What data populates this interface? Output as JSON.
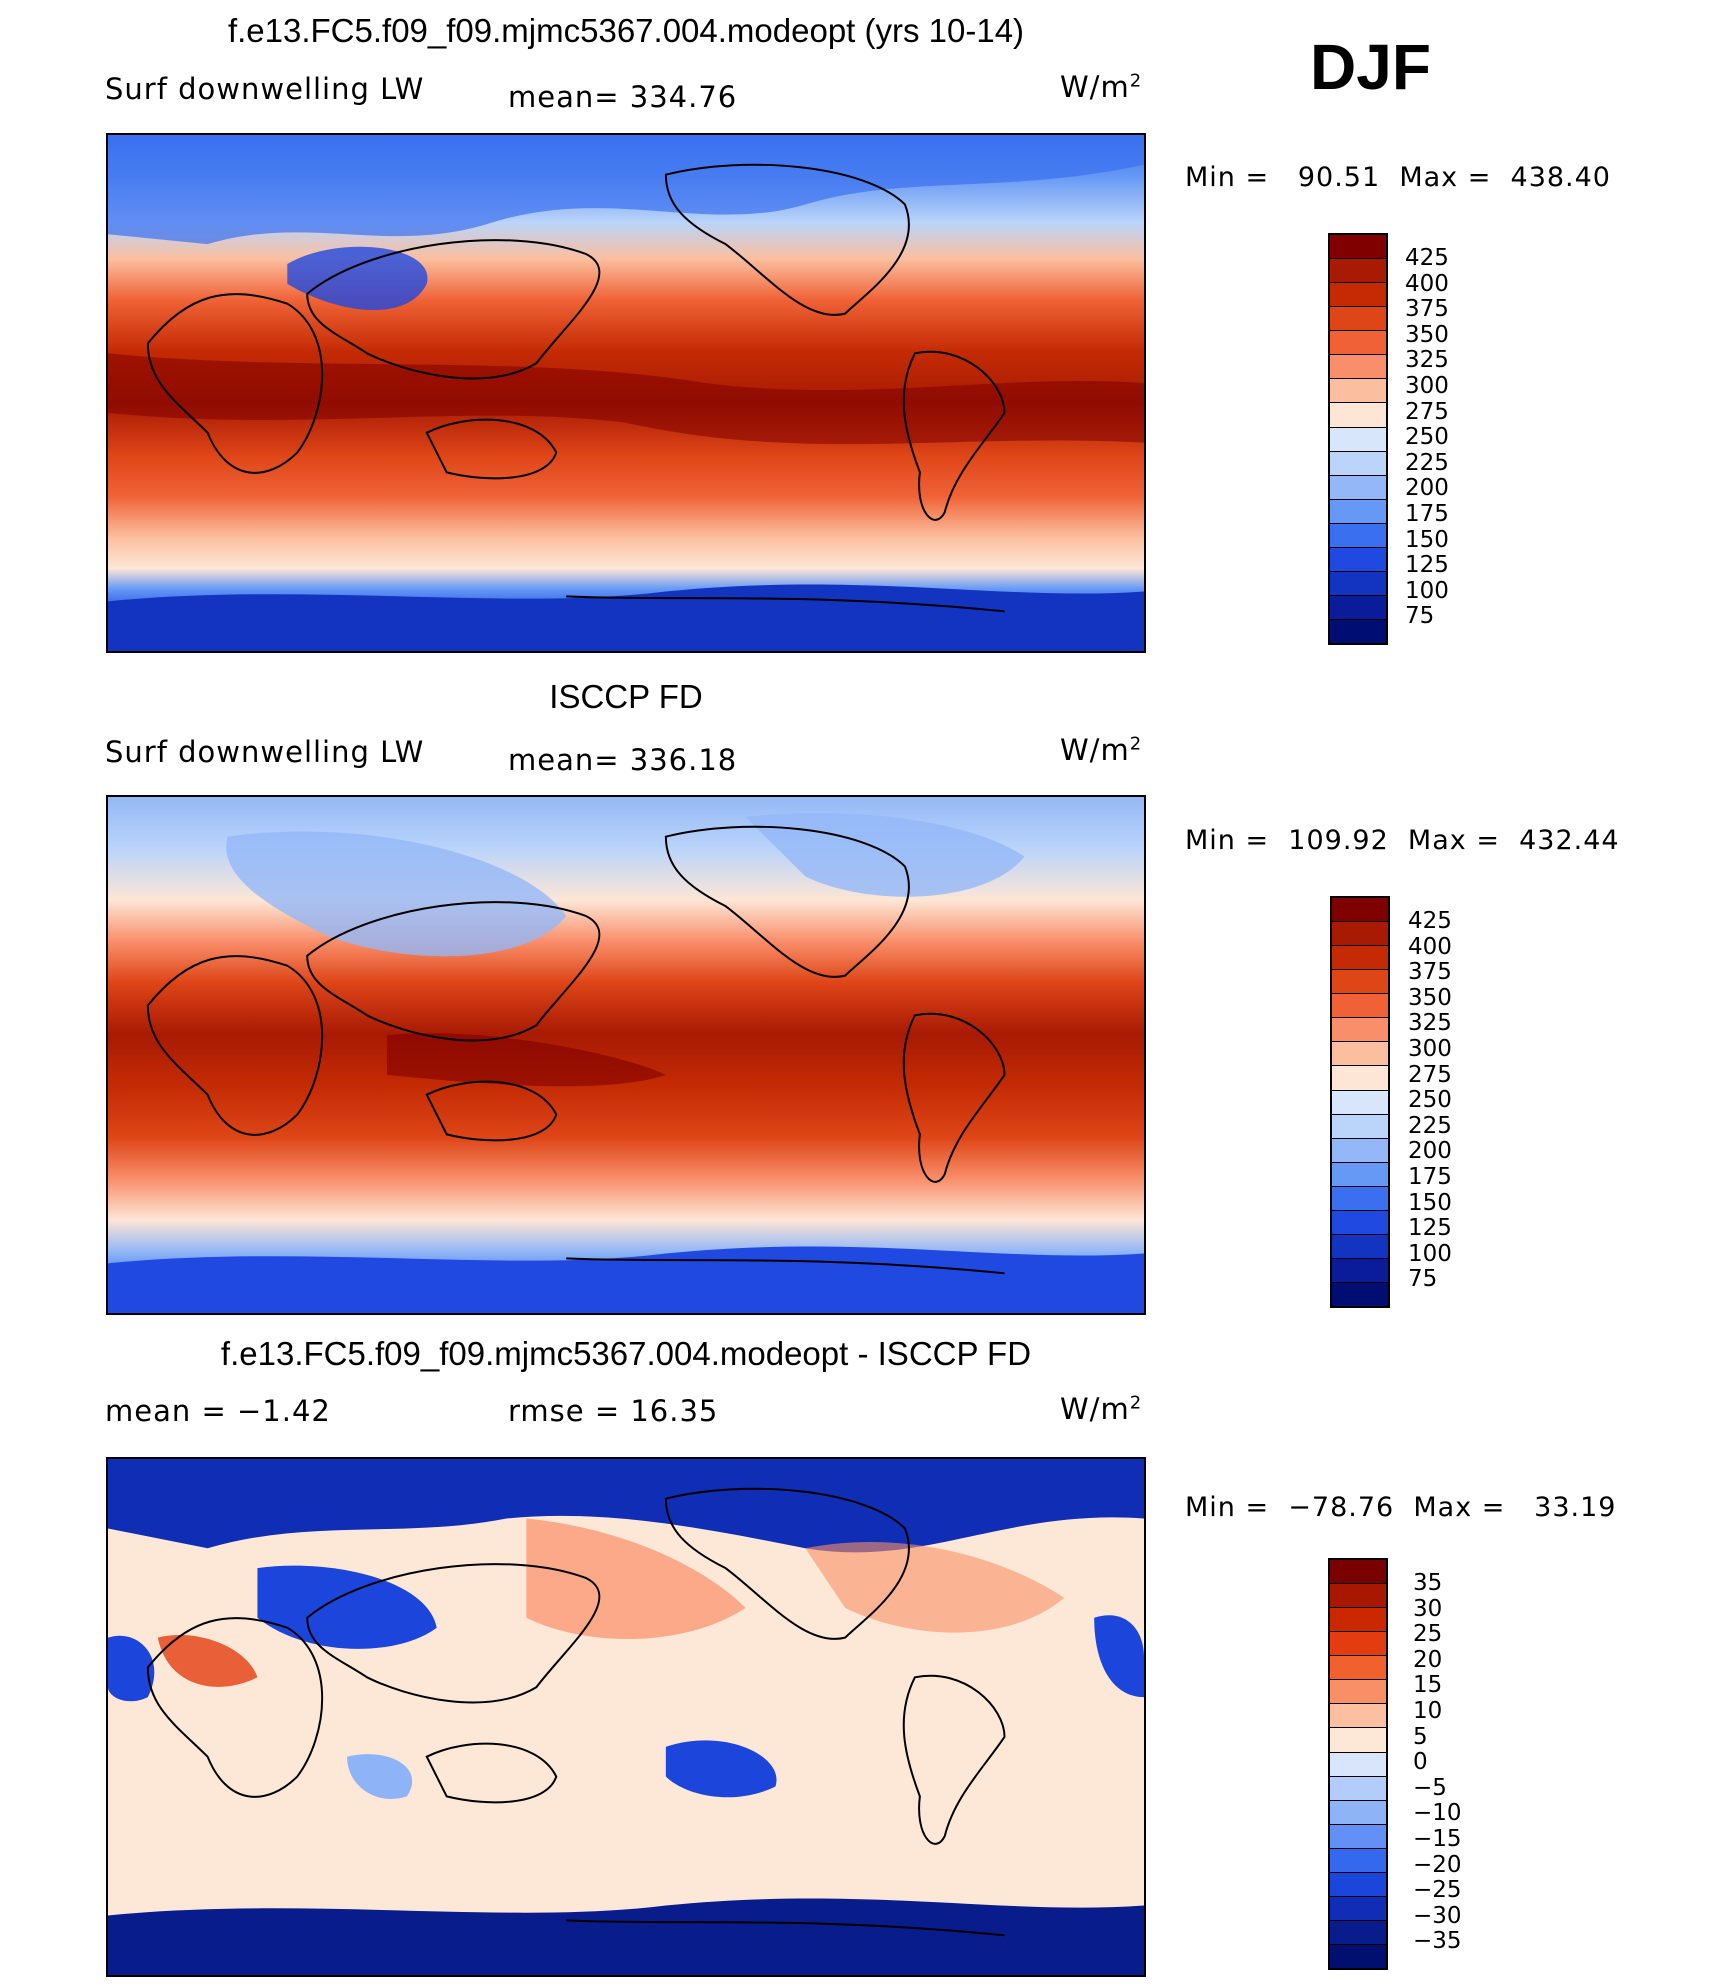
{
  "season": "DJF",
  "colors": {
    "model_obs_scale": [
      "#800000",
      "#a81a04",
      "#c42b04",
      "#de4517",
      "#f06236",
      "#f98e6a",
      "#fbbf9f",
      "#fde6d6",
      "#d8e6fb",
      "#bad4fa",
      "#94b8f7",
      "#6698f5",
      "#3a70f0",
      "#1f49e0",
      "#1234c0",
      "#0a1c99",
      "#000e73"
    ],
    "diff_scale": [
      "#7a0000",
      "#a81800",
      "#cc2800",
      "#e33c10",
      "#f0612e",
      "#f98f66",
      "#fcc0a0",
      "#fde8d8",
      "#d8e5fb",
      "#b2cdfa",
      "#8fb3f7",
      "#6290f4",
      "#3468ee",
      "#1c45dc",
      "#0f2eb5",
      "#081c8c",
      "#000f70"
    ]
  },
  "panels": [
    {
      "title": "f.e13.FC5.f09_f09.mjmc5367.004.modeopt (yrs 10-14)",
      "left_label": "Surf downwelling LW",
      "center_label": "mean=  334.76",
      "unit": "W/m",
      "unit_sup": "2",
      "minmax": "Min =   90.51  Max =  438.40",
      "colorbar_ticks": [
        "425",
        "400",
        "375",
        "350",
        "325",
        "300",
        "275",
        "250",
        "225",
        "200",
        "175",
        "150",
        "125",
        "100",
        "75"
      ]
    },
    {
      "title": "ISCCP FD",
      "left_label": "Surf downwelling LW",
      "center_label": "mean=  336.18",
      "unit": "W/m",
      "unit_sup": "2",
      "minmax": "Min =  109.92  Max =  432.44",
      "colorbar_ticks": [
        "425",
        "400",
        "375",
        "350",
        "325",
        "300",
        "275",
        "250",
        "225",
        "200",
        "175",
        "150",
        "125",
        "100",
        "75"
      ]
    },
    {
      "title": "f.e13.FC5.f09_f09.mjmc5367.004.modeopt - ISCCP FD",
      "left_label": "mean =   −1.42",
      "center_label": "rmse =    16.35",
      "unit": "W/m",
      "unit_sup": "2",
      "minmax": "Min =  −78.76  Max =   33.19",
      "colorbar_ticks": [
        "35",
        "30",
        "25",
        "20",
        "15",
        "10",
        "5",
        "0",
        "−5",
        "−10",
        "−15",
        "−20",
        "−25",
        "−30",
        "−35"
      ]
    }
  ]
}
